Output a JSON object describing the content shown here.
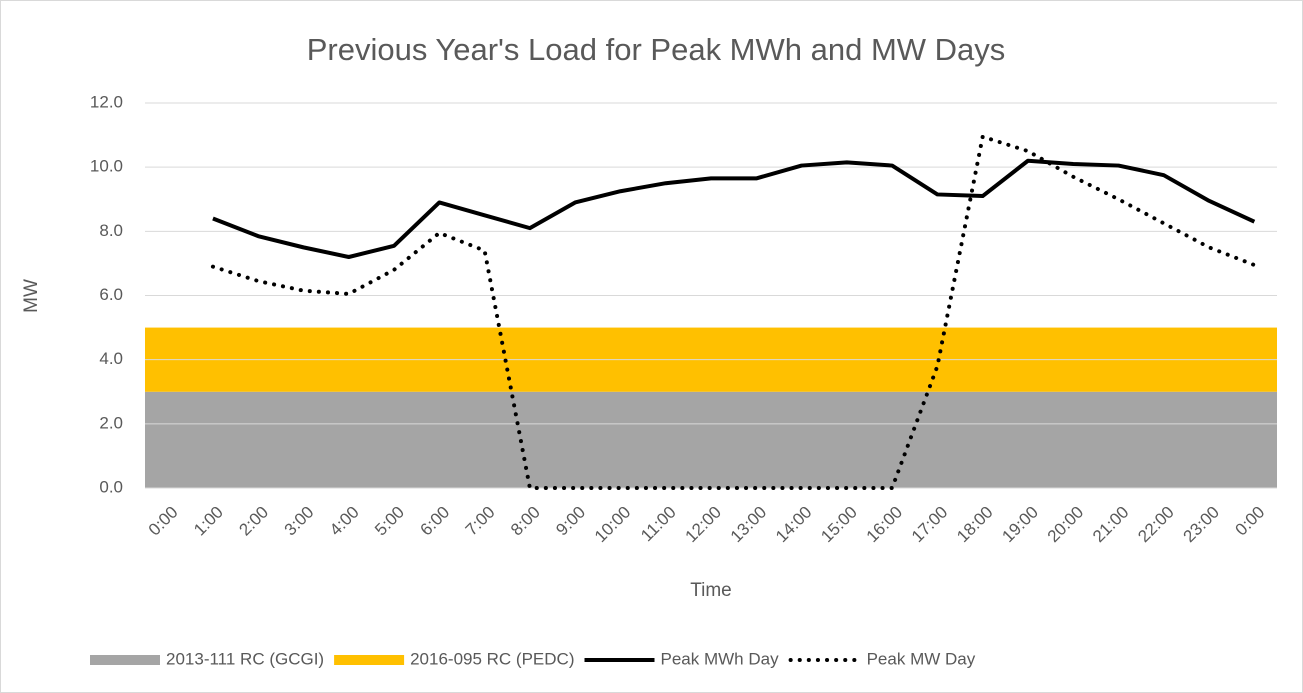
{
  "chart_data": {
    "type": "line",
    "title": "Previous Year's Load for Peak MWh and MW Days",
    "x_label": "Time",
    "y_label": "MW",
    "categories": [
      "0:00",
      "1:00",
      "2:00",
      "3:00",
      "4:00",
      "5:00",
      "6:00",
      "7:00",
      "8:00",
      "9:00",
      "10:00",
      "11:00",
      "12:00",
      "13:00",
      "14:00",
      "15:00",
      "16:00",
      "17:00",
      "18:00",
      "19:00",
      "20:00",
      "21:00",
      "22:00",
      "23:00",
      "0:00"
    ],
    "bands": [
      {
        "name": "2013-111 RC (GCGI)",
        "color": "#a5a5a5",
        "value": 3
      },
      {
        "name": "2016-095 RC (PEDC)",
        "color": "#ffc000",
        "value": 2
      }
    ],
    "series": [
      {
        "name": "Peak MWh Day",
        "color": "#000000",
        "dash": "solid",
        "values": [
          null,
          8.4,
          7.85,
          7.5,
          7.2,
          7.55,
          8.9,
          8.5,
          8.1,
          8.9,
          9.25,
          9.5,
          9.65,
          9.65,
          10.05,
          10.15,
          10.05,
          9.15,
          9.1,
          10.2,
          10.1,
          10.05,
          9.75,
          8.95,
          8.3
        ]
      },
      {
        "name": "Peak MW Day",
        "color": "#000000",
        "dash": "dotted",
        "values": [
          null,
          6.9,
          6.45,
          6.15,
          6.05,
          6.8,
          7.95,
          7.4,
          0,
          0,
          0,
          0,
          0,
          0,
          0,
          0,
          0,
          3.8,
          10.95,
          10.5,
          9.7,
          9.0,
          8.25,
          7.5,
          6.95
        ]
      }
    ],
    "ylim": [
      0,
      12
    ],
    "yticks": [
      {
        "value": 0,
        "label": "0.0"
      },
      {
        "value": 2,
        "label": "2.0"
      },
      {
        "value": 4,
        "label": "4.0"
      },
      {
        "value": 6,
        "label": "6.0"
      },
      {
        "value": 8,
        "label": "8.0"
      },
      {
        "value": 10,
        "label": "10.0"
      },
      {
        "value": 12,
        "label": "12.0"
      }
    ],
    "grid": true,
    "legend": "bottom"
  }
}
